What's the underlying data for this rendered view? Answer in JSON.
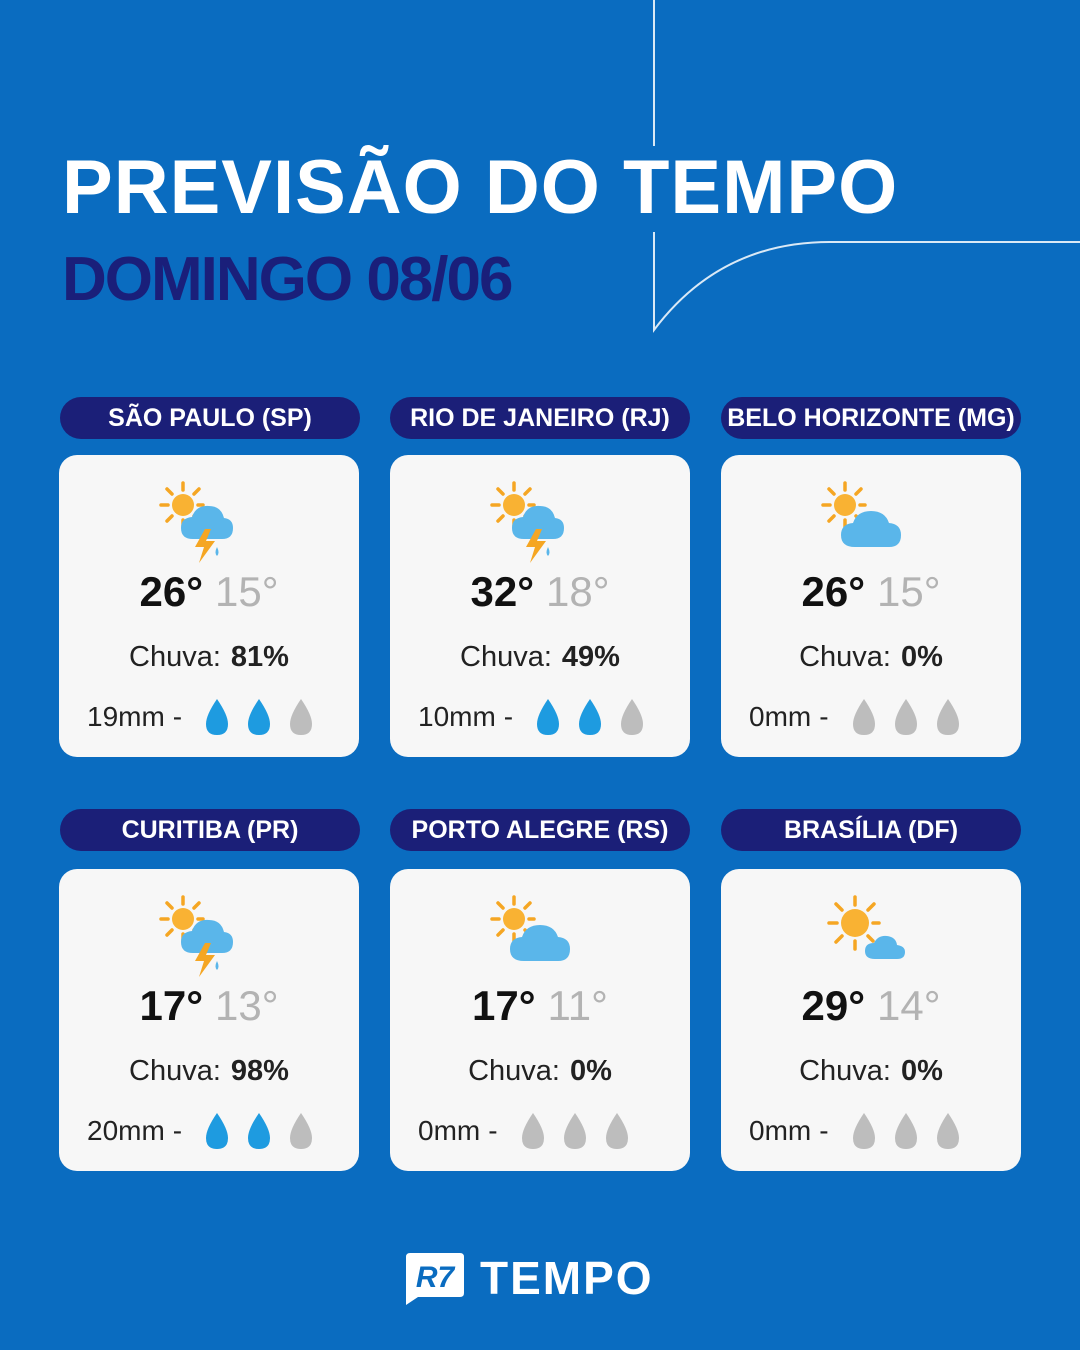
{
  "header": {
    "title": "PREVISÃO DO TEMPO",
    "subtitle": "DOMINGO 08/06"
  },
  "cities": [
    {
      "label": "SÃO PAULO (SP)",
      "icon": "sun-cloud-storm-icon",
      "max": "26°",
      "min": "15°",
      "rain_label": "Chuva:",
      "rain_pct": "81%",
      "mm": "19mm",
      "drops_filled": 2
    },
    {
      "label": "RIO DE JANEIRO (RJ)",
      "icon": "sun-cloud-storm-icon",
      "max": "32°",
      "min": "18°",
      "rain_label": "Chuva:",
      "rain_pct": "49%",
      "mm": "10mm",
      "drops_filled": 2
    },
    {
      "label": "BELO HORIZONTE (MG)",
      "icon": "partly-cloudy-icon",
      "max": "26°",
      "min": "15°",
      "rain_label": "Chuva:",
      "rain_pct": "0%",
      "mm": "0mm",
      "drops_filled": 0
    },
    {
      "label": "CURITIBA (PR)",
      "icon": "sun-cloud-storm-icon",
      "max": "17°",
      "min": "13°",
      "rain_label": "Chuva:",
      "rain_pct": "98%",
      "mm": "20mm",
      "drops_filled": 2
    },
    {
      "label": "PORTO ALEGRE (RS)",
      "icon": "partly-cloudy-icon",
      "max": "17°",
      "min": "11°",
      "rain_label": "Chuva:",
      "rain_pct": "0%",
      "mm": "0mm",
      "drops_filled": 0
    },
    {
      "label": "BRASÍLIA (DF)",
      "icon": "sunny-small-cloud-icon",
      "max": "29°",
      "min": "14°",
      "rain_label": "Chuva:",
      "rain_pct": "0%",
      "mm": "0mm",
      "drops_filled": 0
    }
  ],
  "footer": {
    "logo_badge": "R7",
    "logo_text": "TEMPO"
  },
  "colors": {
    "background": "#0a6cc0",
    "label_bg": "#1b1f78",
    "subtitle": "#1a1f7a",
    "drop_filled": "#1e9be0",
    "drop_empty": "#bdbdbd"
  }
}
